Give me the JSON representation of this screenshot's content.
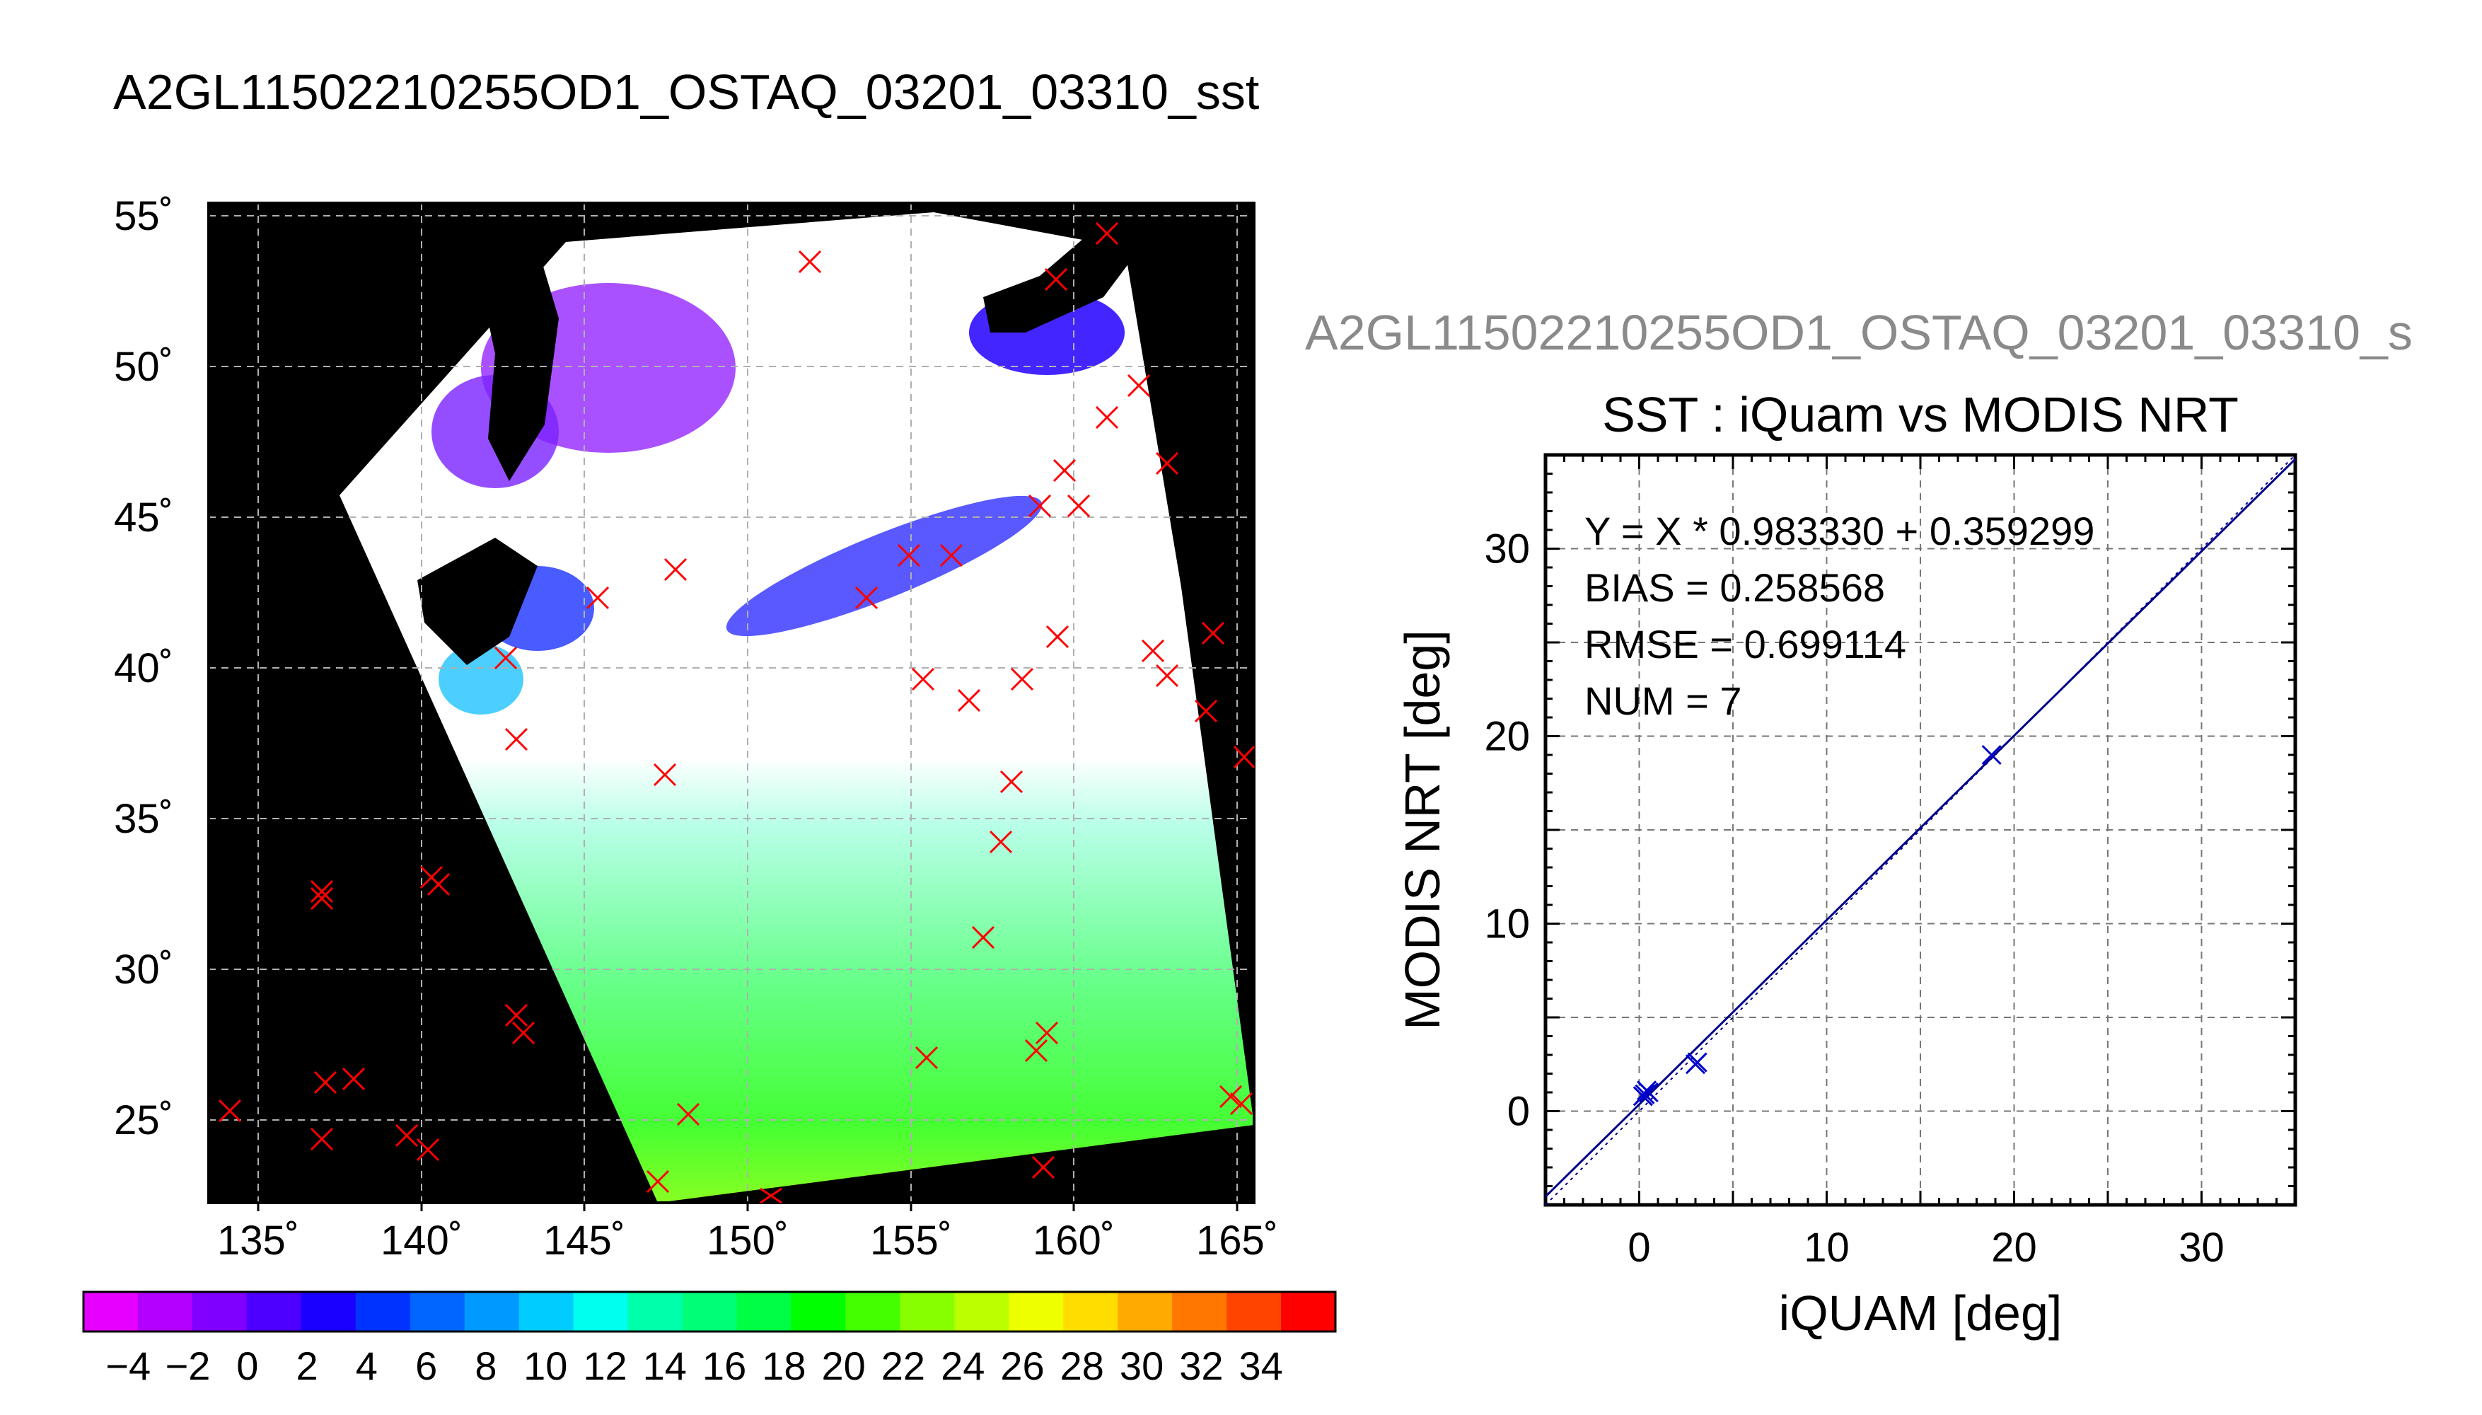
{
  "main_title": "A2GL11502210255OD1_OSTAQ_03201_03310_sst",
  "side_title": "A2GL11502210255OD1_OSTAQ_03201_03310_s",
  "map": {
    "lon_ticks": [
      "135˚",
      "140˚",
      "145˚",
      "150˚",
      "155˚",
      "160˚",
      "165˚"
    ],
    "lat_ticks": [
      "55˚",
      "50˚",
      "45˚",
      "40˚",
      "35˚",
      "30˚",
      "25˚"
    ],
    "colorbar_ticks": [
      "−4",
      "−2",
      "0",
      "2",
      "4",
      "6",
      "8",
      "10",
      "12",
      "14",
      "16",
      "18",
      "20",
      "22",
      "24",
      "26",
      "28",
      "30",
      "32",
      "34"
    ],
    "colorbar_colors": [
      "#e600ff",
      "#b300ff",
      "#8000ff",
      "#4d00ff",
      "#1a00ff",
      "#0033ff",
      "#0066ff",
      "#0099ff",
      "#00ccff",
      "#00ffee",
      "#00ffaa",
      "#00ff77",
      "#00ff44",
      "#00ff00",
      "#44ff00",
      "#88ff00",
      "#bbff00",
      "#eeff00",
      "#ffdd00",
      "#ffaa00",
      "#ff7700",
      "#ff4400",
      "#ff0000"
    ],
    "marker_color": "#ff0000"
  },
  "chart_data": {
    "type": "scatter",
    "title": "SST : iQuam vs MODIS NRT",
    "xlabel": "iQUAM [deg]",
    "ylabel": "MODIS NRT [deg]",
    "xlim": [
      -5,
      35
    ],
    "ylim": [
      -5,
      35
    ],
    "xticks": [
      0,
      10,
      20,
      30
    ],
    "yticks": [
      0,
      10,
      20,
      30
    ],
    "grid": true,
    "annotations": [
      "Y = X * 0.983330 + 0.359299",
      "BIAS = 0.258568",
      "RMSE = 0.699114",
      "NUM = 7"
    ],
    "fit": {
      "slope": 0.98333,
      "intercept": 0.359299
    },
    "points": [
      {
        "x": 0.3,
        "y": 0.9
      },
      {
        "x": 0.4,
        "y": 1.1
      },
      {
        "x": 3.0,
        "y": 2.5
      },
      {
        "x": 18.8,
        "y": 19.0
      },
      {
        "x": 0.2,
        "y": 0.8
      },
      {
        "x": 0.5,
        "y": 1.0
      },
      {
        "x": 3.1,
        "y": 2.6
      }
    ],
    "point_color": "#0000cc",
    "line_color": "#00008b"
  }
}
